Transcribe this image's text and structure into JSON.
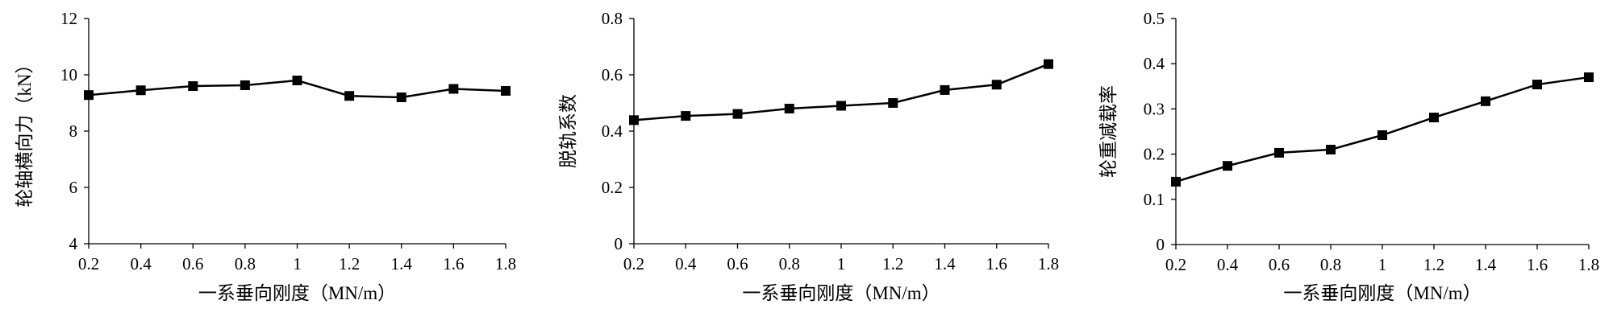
{
  "chart_data": [
    {
      "type": "line",
      "x_label": "一系垂向刚度（MN/m）",
      "y_label": "轮轴横向力（kN）",
      "x": [
        0.2,
        0.4,
        0.6,
        0.8,
        1,
        1.2,
        1.4,
        1.6,
        1.8
      ],
      "series": [
        {
          "color": "#000000",
          "values": [
            9.28,
            9.45,
            9.6,
            9.63,
            9.8,
            9.25,
            9.2,
            9.5,
            9.43
          ]
        }
      ],
      "xlim": [
        0.2,
        1.8
      ],
      "xticks": [
        0.2,
        0.4,
        0.6,
        0.8,
        1,
        1.2,
        1.4,
        1.6,
        1.8
      ],
      "ylim": [
        4,
        12
      ],
      "yticks": [
        4,
        6,
        8,
        10,
        12
      ]
    },
    {
      "type": "line",
      "x_label": "一系垂向刚度（MN/m）",
      "y_label": "脱轨系数",
      "x": [
        0.2,
        0.4,
        0.6,
        0.8,
        1,
        1.2,
        1.4,
        1.6,
        1.8
      ],
      "series": [
        {
          "color": "#000000",
          "values": [
            0.439,
            0.454,
            0.461,
            0.48,
            0.49,
            0.5,
            0.546,
            0.565,
            0.638
          ]
        }
      ],
      "xlim": [
        0.2,
        1.8
      ],
      "xticks": [
        0.2,
        0.4,
        0.6,
        0.8,
        1,
        1.2,
        1.4,
        1.6,
        1.8
      ],
      "ylim": [
        0,
        0.8
      ],
      "yticks": [
        0,
        0.2,
        0.4,
        0.6,
        0.8
      ]
    },
    {
      "type": "line",
      "x_label": "一系垂向刚度（MN/m）",
      "y_label": "轮重减载率",
      "x": [
        0.2,
        0.4,
        0.6,
        0.8,
        1,
        1.2,
        1.4,
        1.6,
        1.8
      ],
      "series": [
        {
          "color": "#000000",
          "values": [
            0.139,
            0.174,
            0.203,
            0.21,
            0.242,
            0.281,
            0.317,
            0.354,
            0.37
          ]
        }
      ],
      "xlim": [
        0.2,
        1.8
      ],
      "xticks": [
        0.2,
        0.4,
        0.6,
        0.8,
        1,
        1.2,
        1.4,
        1.6,
        1.8
      ],
      "ylim": [
        0,
        0.5
      ],
      "yticks": [
        0,
        0.1,
        0.2,
        0.3,
        0.4,
        0.5
      ]
    }
  ]
}
